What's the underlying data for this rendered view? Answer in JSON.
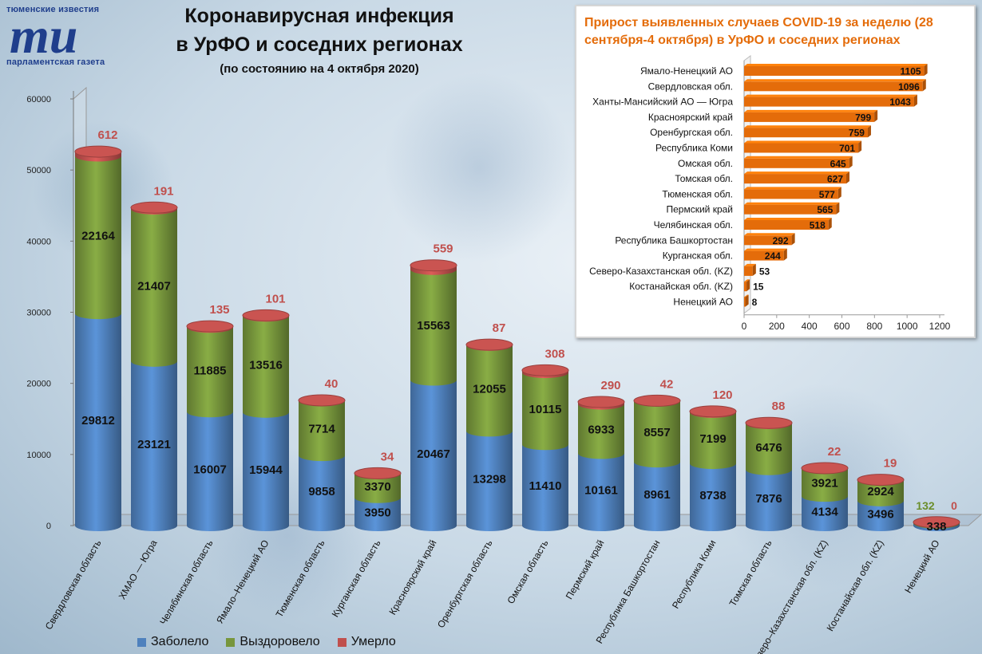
{
  "logo": {
    "top_text": "тюменские известия",
    "letters": "ти",
    "bottom_text": "парламентская газета"
  },
  "title": {
    "line1": "Коронавирусная инфекция",
    "line2": "в УрФО и соседних регионах",
    "subtitle": "(по состоянию на 4 октября 2020)"
  },
  "colors": {
    "sick": "#4f81bd",
    "recovered": "#77963c",
    "dead": "#c0504d",
    "dead_label": "#c0504d",
    "orange": "#e46c0a"
  },
  "chart_data": [
    {
      "type": "bar",
      "stacked": true,
      "categories": [
        "Свердловская область",
        "ХМАО — Югра",
        "Челябинская область",
        "Ямало–Ненецкий АО",
        "Тюменская область",
        "Курганская область",
        "Красноярский край",
        "Оренбургская область",
        "Омская область",
        "Пермский край",
        "Республика Башкортостан",
        "Республика Коми",
        "Томская область",
        "Северо–Казахстанская обл. (KZ)",
        "Костанайская обл. (KZ)",
        "Ненецкий АО"
      ],
      "series": [
        {
          "name": "Заболело",
          "values": [
            29812,
            23121,
            16007,
            15944,
            9858,
            3950,
            20467,
            13298,
            11410,
            10161,
            8961,
            8738,
            7876,
            4134,
            3496,
            338
          ]
        },
        {
          "name": "Выздоровело",
          "values": [
            22164,
            21407,
            11885,
            13516,
            7714,
            3370,
            15563,
            12055,
            10115,
            6933,
            8557,
            7199,
            6476,
            3921,
            2924,
            132
          ]
        },
        {
          "name": "Умерло",
          "values": [
            612,
            191,
            135,
            101,
            40,
            34,
            559,
            87,
            308,
            290,
            42,
            120,
            88,
            22,
            19,
            0
          ]
        }
      ],
      "ylim": [
        0,
        60000
      ],
      "yticks": [
        "0",
        "10000",
        "20000",
        "30000",
        "40000",
        "50000",
        "60000"
      ],
      "legend": "bottom",
      "grid": false
    },
    {
      "type": "bar",
      "orientation": "horizontal",
      "title": "Прирост выявленных случаев COVID-19 за неделю (28 сентября-4 октября) в УрФО и соседних регионах",
      "categories": [
        "Ямало-Ненецкий АО",
        "Свердловская обл.",
        "Ханты-Мансийский АО — Югра",
        "Красноярский край",
        "Оренбургская обл.",
        "Республика Коми",
        "Омская обл.",
        "Томская обл.",
        "Тюменская обл.",
        "Пермский край",
        "Челябинская обл.",
        "Республика Башкортостан",
        "Курганская обл.",
        "Северо-Казахстанская обл. (KZ)",
        "Костанайская обл. (KZ)",
        "Ненецкий АО"
      ],
      "values": [
        1105,
        1096,
        1043,
        799,
        759,
        701,
        645,
        627,
        577,
        565,
        518,
        292,
        244,
        53,
        15,
        8
      ],
      "xlim": [
        0,
        1200
      ],
      "xticks": [
        "0",
        "200",
        "400",
        "600",
        "800",
        "1000",
        "1200"
      ],
      "grid": false
    }
  ]
}
